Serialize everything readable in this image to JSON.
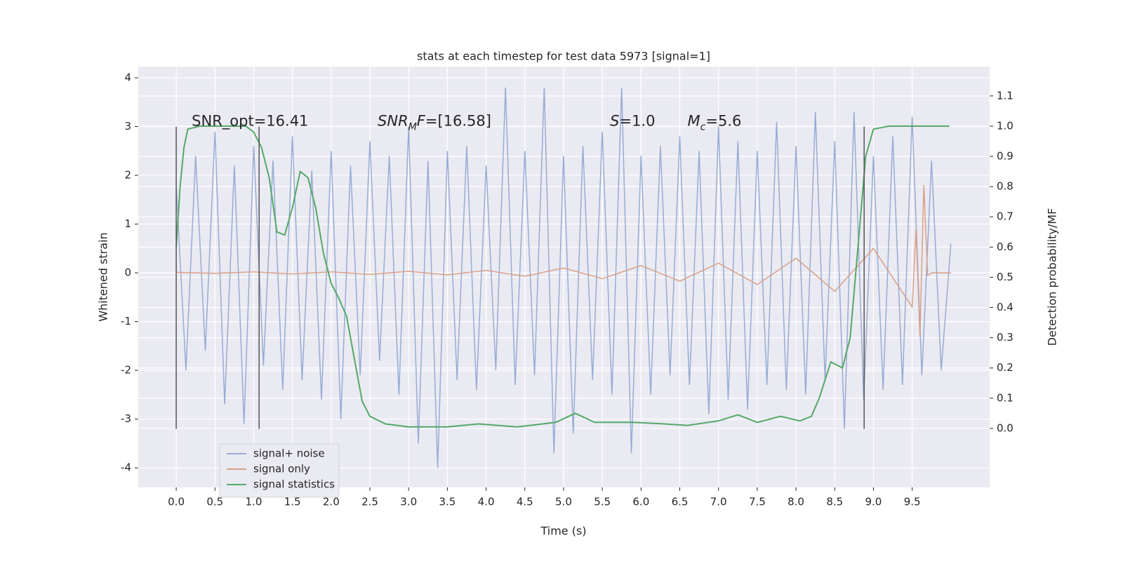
{
  "chart_data": {
    "type": "line",
    "title": "stats at each timestep for test data 5973 [signal=1]",
    "xlabel": "Time (s)",
    "ylabel": "Whitened strain",
    "y2label": "Detection probability/MF",
    "xlim": [
      -0.49,
      10.5
    ],
    "ylim": [
      -4.4,
      4.23
    ],
    "y2lim": [
      -0.195,
      1.197
    ],
    "xticks": [
      {
        "value": 0,
        "label": "0.0"
      },
      0.5,
      {
        "value": 1,
        "label": "1.0"
      },
      1.5,
      {
        "value": 2,
        "label": "2.0"
      },
      2.5,
      {
        "value": 3,
        "label": "3.0"
      },
      3.5,
      {
        "value": 4,
        "label": "4.0"
      },
      4.5,
      {
        "value": 5,
        "label": "5.0"
      },
      5.5,
      {
        "value": 6,
        "label": "6.0"
      },
      6.5,
      {
        "value": 7,
        "label": "7.0"
      },
      7.5,
      {
        "value": 8,
        "label": "8.0"
      },
      8.5,
      {
        "value": 9,
        "label": "9.0"
      },
      9.5
    ],
    "yticks": [
      -4,
      -3,
      -2,
      -1,
      0,
      1,
      2,
      3,
      4
    ],
    "y2ticks": [
      {
        "value": 0,
        "label": "0.0"
      },
      0.1,
      0.2,
      0.3,
      0.4,
      0.5,
      0.6,
      0.7,
      0.8,
      0.9,
      {
        "value": 1,
        "label": "1.0"
      },
      1.1
    ],
    "grid": true,
    "legend": "lower left",
    "series": [
      {
        "name": "signal+ noise",
        "color": "#98acd4",
        "x": [
          0,
          0.125,
          0.25,
          0.375,
          0.5,
          0.625,
          0.75,
          0.875,
          1,
          1.125,
          1.25,
          1.375,
          1.5,
          1.625,
          1.75,
          1.875,
          2,
          2.125,
          2.25,
          2.375,
          2.5,
          2.625,
          2.75,
          2.875,
          3,
          3.125,
          3.25,
          3.375,
          3.5,
          3.625,
          3.75,
          3.875,
          4,
          4.125,
          4.25,
          4.375,
          4.5,
          4.625,
          4.75,
          4.875,
          5,
          5.125,
          5.25,
          5.375,
          5.5,
          5.625,
          5.75,
          5.875,
          6,
          6.125,
          6.25,
          6.375,
          6.5,
          6.625,
          6.75,
          6.875,
          7,
          7.125,
          7.25,
          7.375,
          7.5,
          7.625,
          7.75,
          7.875,
          8,
          8.125,
          8.25,
          8.375,
          8.5,
          8.625,
          8.75,
          8.875,
          9,
          9.125,
          9.25,
          9.375,
          9.5,
          9.625,
          9.75,
          9.875,
          10
        ],
        "values": [
          1.8,
          -2.0,
          2.4,
          -1.6,
          2.9,
          -2.7,
          2.2,
          -3.1,
          2.6,
          -1.9,
          2.3,
          -2.4,
          2.8,
          -2.2,
          2.1,
          -2.6,
          2.5,
          -3.0,
          2.2,
          -2.1,
          2.7,
          -1.8,
          2.4,
          -2.5,
          3.0,
          -3.5,
          2.3,
          -4.0,
          2.5,
          -2.2,
          2.6,
          -2.4,
          2.2,
          -2.0,
          3.8,
          -2.3,
          2.5,
          -2.1,
          3.8,
          -3.7,
          2.4,
          -3.3,
          2.6,
          -2.2,
          2.9,
          -2.5,
          3.8,
          -3.7,
          2.4,
          -2.5,
          2.6,
          -2.1,
          2.8,
          -2.3,
          2.5,
          -2.9,
          3.0,
          -2.6,
          2.7,
          -2.8,
          2.5,
          -2.3,
          3.1,
          -2.4,
          2.6,
          -2.5,
          3.3,
          -2.2,
          2.7,
          -3.2,
          3.3,
          -2.6,
          2.4,
          -2.4,
          2.8,
          -2.3,
          3.2,
          -2.1,
          2.3,
          -2.0,
          0.6
        ]
      },
      {
        "name": "signal only",
        "color": "#d9a088",
        "x": [
          0,
          0.5,
          1,
          1.5,
          2,
          2.5,
          3,
          3.5,
          4,
          4.5,
          5,
          5.5,
          6,
          6.5,
          7,
          7.5,
          8,
          8.5,
          9,
          9.5,
          9.55,
          9.6,
          9.65,
          9.7,
          9.75,
          10
        ],
        "values": [
          0.01,
          -0.01,
          0.02,
          -0.02,
          0.02,
          -0.03,
          0.03,
          -0.04,
          0.05,
          -0.07,
          0.1,
          -0.12,
          0.15,
          -0.17,
          0.2,
          -0.24,
          0.3,
          -0.38,
          0.5,
          -0.7,
          0.9,
          -1.3,
          1.8,
          -0.05,
          0.0,
          0.0
        ]
      },
      {
        "name": "signal statistics",
        "color": "#55a868",
        "axis": "y2",
        "x": [
          0,
          0.05,
          0.1,
          0.15,
          0.3,
          0.6,
          0.9,
          1.0,
          1.1,
          1.2,
          1.3,
          1.4,
          1.5,
          1.6,
          1.7,
          1.8,
          1.9,
          2.0,
          2.1,
          2.2,
          2.3,
          2.4,
          2.5,
          2.7,
          3.0,
          3.5,
          3.9,
          4.4,
          4.9,
          5.15,
          5.4,
          5.9,
          6.3,
          6.6,
          7.0,
          7.25,
          7.5,
          7.8,
          8.05,
          8.2,
          8.3,
          8.45,
          8.6,
          8.7,
          8.8,
          8.9,
          9.0,
          9.2,
          9.98
        ],
        "values": [
          0.6,
          0.8,
          0.93,
          0.99,
          1.0,
          1.0,
          1.0,
          0.98,
          0.93,
          0.83,
          0.65,
          0.64,
          0.73,
          0.85,
          0.83,
          0.73,
          0.58,
          0.48,
          0.43,
          0.37,
          0.23,
          0.09,
          0.04,
          0.015,
          0.005,
          0.005,
          0.015,
          0.005,
          0.02,
          0.05,
          0.02,
          0.02,
          0.015,
          0.01,
          0.025,
          0.045,
          0.02,
          0.04,
          0.025,
          0.04,
          0.1,
          0.22,
          0.2,
          0.3,
          0.6,
          0.9,
          0.99,
          1.0,
          1.0
        ]
      }
    ],
    "vlines": [
      0,
      1.07,
      8.88
    ],
    "annotations": [
      [
        {
          "text": "SNR_opt=16.41"
        }
      ],
      [
        {
          "text": "SNR",
          "style": "italic"
        },
        {
          "text": "M",
          "style": "sub"
        },
        {
          "text": "F",
          "style": "italic"
        },
        {
          "text": "=[16.58]"
        }
      ],
      [
        {
          "text": "S",
          "style": "italic"
        },
        {
          "text": "=1.0"
        }
      ],
      [
        {
          "text": "M",
          "style": "italic"
        },
        {
          "text": "c",
          "style": "sub"
        },
        {
          "text": "=5.6"
        }
      ]
    ]
  }
}
